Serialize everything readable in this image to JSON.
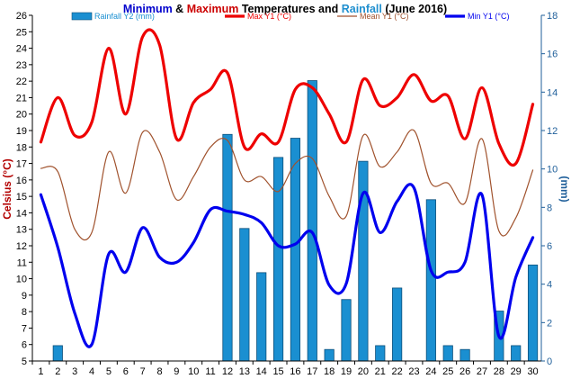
{
  "title_parts": [
    {
      "text": "Minimum",
      "color": "#0000cc"
    },
    {
      "text": " & ",
      "color": "#000000"
    },
    {
      "text": "Maximum",
      "color": "#cc0000"
    },
    {
      "text": " Temperatures and ",
      "color": "#000000"
    },
    {
      "text": "Rainfall",
      "color": "#1f8fcf"
    },
    {
      "text": " (June 2016)",
      "color": "#000000"
    }
  ],
  "chart_data": {
    "type": "bar+line",
    "x": [
      1,
      2,
      3,
      4,
      5,
      6,
      7,
      8,
      9,
      10,
      11,
      12,
      13,
      14,
      15,
      16,
      17,
      18,
      19,
      20,
      21,
      22,
      23,
      24,
      25,
      26,
      27,
      28,
      29,
      30
    ],
    "ylabel": "Celsius (°C)",
    "y2label": "(mm)",
    "ylim": [
      5,
      26
    ],
    "y2lim": [
      0,
      18
    ],
    "y_ticks": [
      5,
      6,
      7,
      8,
      9,
      10,
      11,
      12,
      13,
      14,
      15,
      16,
      17,
      18,
      19,
      20,
      21,
      22,
      23,
      24,
      25,
      26
    ],
    "y2_ticks": [
      0,
      2,
      4,
      6,
      8,
      10,
      12,
      14,
      16,
      18
    ],
    "grid": false,
    "legend_position": "top",
    "series": [
      {
        "name": "Rainfall Y2 (mm)",
        "kind": "bar",
        "axis": "y2",
        "color": "#1a8fd1",
        "values": [
          0,
          0.8,
          0,
          0,
          0,
          0,
          0,
          0,
          0,
          0,
          0,
          11.8,
          6.9,
          4.6,
          10.6,
          11.6,
          14.6,
          0.6,
          3.2,
          10.4,
          0.8,
          3.8,
          0,
          8.4,
          0.8,
          0.6,
          0,
          2.6,
          0.8,
          5.0
        ]
      },
      {
        "name": "Max Y1 (°C)",
        "kind": "line",
        "axis": "y",
        "color": "#ee0000",
        "width": 3.2,
        "values": [
          18.3,
          21.0,
          18.7,
          19.5,
          24.0,
          20.0,
          24.7,
          24.2,
          18.5,
          20.7,
          21.5,
          22.5,
          18.0,
          18.8,
          18.3,
          21.5,
          21.6,
          20.0,
          18.3,
          22.1,
          20.5,
          21.0,
          22.4,
          20.8,
          21.1,
          18.5,
          21.6,
          18.2,
          17.0,
          20.6
        ]
      },
      {
        "name": "Mean Y1 (°C)",
        "kind": "line",
        "axis": "y",
        "color": "#a0522d",
        "width": 1.2,
        "values": [
          16.7,
          16.5,
          13.0,
          12.8,
          17.7,
          15.2,
          18.9,
          17.7,
          14.8,
          16.2,
          18.0,
          18.4,
          16.0,
          16.2,
          15.3,
          17.0,
          17.3,
          15.0,
          13.8,
          18.7,
          16.8,
          17.7,
          19.0,
          15.8,
          15.8,
          14.6,
          18.5,
          12.9,
          13.7,
          16.6
        ]
      },
      {
        "name": "Min Y1 (°C)",
        "kind": "line",
        "axis": "y",
        "color": "#0000ee",
        "width": 3.2,
        "values": [
          15.1,
          11.9,
          7.9,
          6.0,
          11.5,
          10.4,
          13.1,
          11.3,
          11.0,
          12.2,
          14.2,
          14.1,
          13.9,
          13.4,
          12.0,
          12.1,
          12.8,
          9.6,
          9.7,
          15.2,
          12.8,
          14.7,
          15.5,
          10.5,
          10.4,
          11.0,
          15.1,
          6.5,
          10.1,
          12.5
        ]
      }
    ]
  }
}
